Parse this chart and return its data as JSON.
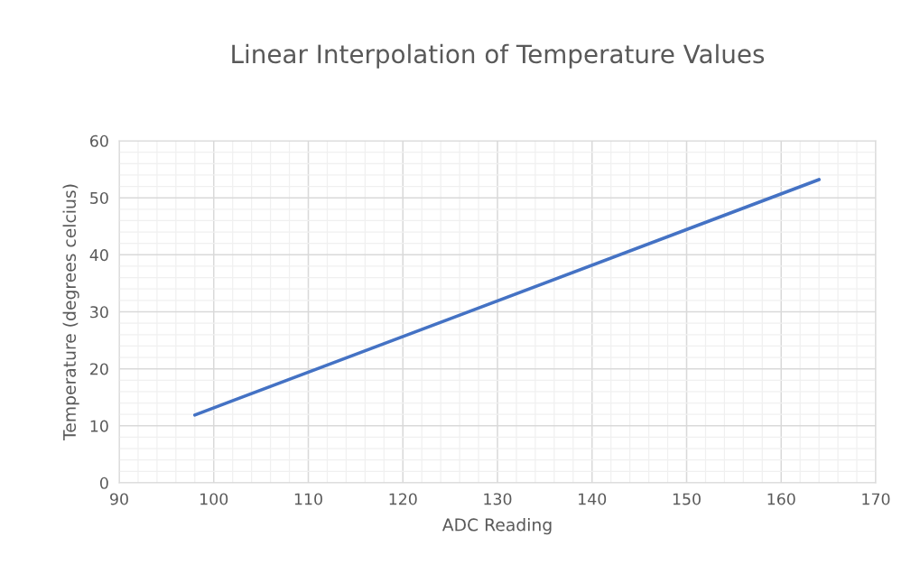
{
  "chart_data": {
    "type": "line",
    "title": "Linear Interpolation of Temperature Values",
    "xlabel": "ADC Reading",
    "ylabel": "Temperature (degrees celcius)",
    "x": [
      98,
      164
    ],
    "series": [
      {
        "color": "#4472c4",
        "values": [
          11.9,
          53.2
        ]
      }
    ],
    "xlim": [
      90,
      170
    ],
    "xticks": [
      90,
      100,
      110,
      120,
      130,
      140,
      150,
      160,
      170
    ],
    "ylim": [
      0,
      60
    ],
    "yticks": [
      0,
      10,
      20,
      30,
      40,
      50,
      60
    ],
    "grid": true,
    "marker": "none",
    "line_style": "solid"
  }
}
